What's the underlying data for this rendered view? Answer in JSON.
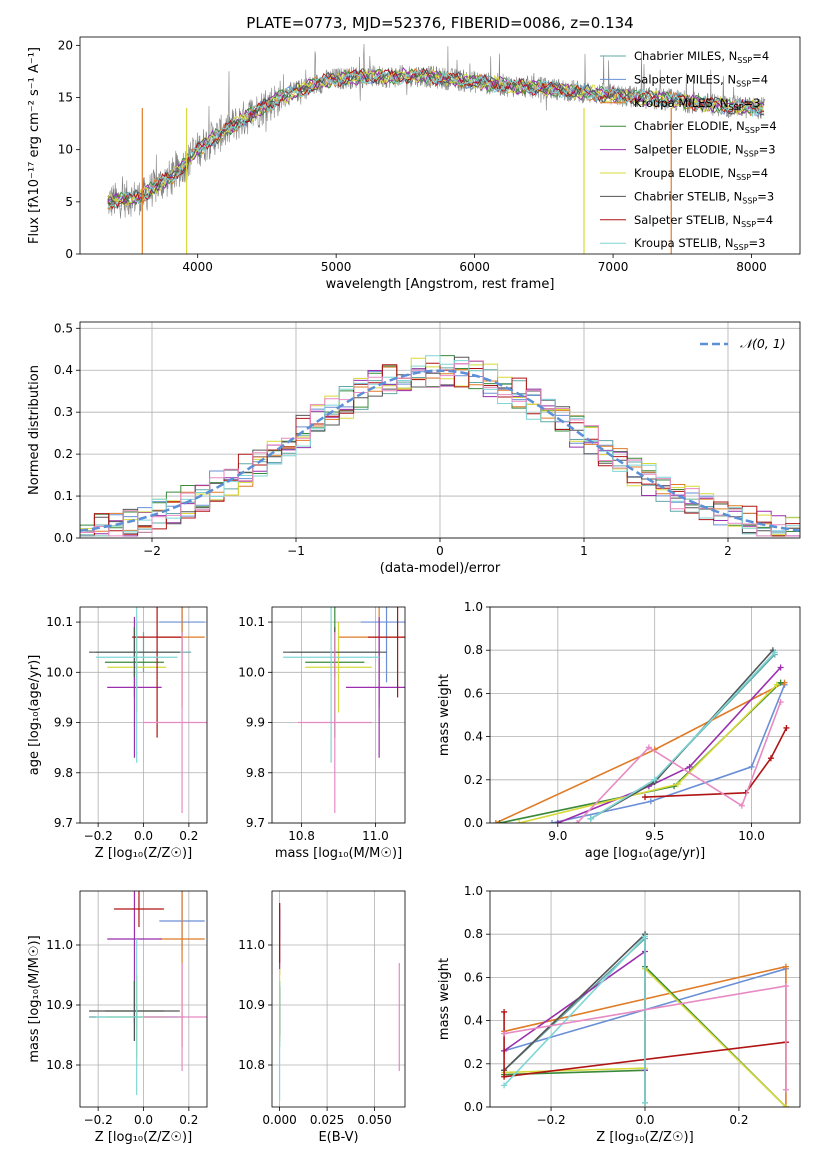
{
  "figure_title": "PLATE=0773, MJD=52376, FIBERID=0086, z=0.134",
  "colors": {
    "Chabrier MILES": "#62a8a8",
    "Salpeter MILES": "#6a8fd6",
    "Kroupa MILES": "#e07b27",
    "Chabrier ELODIE": "#3a8a3a",
    "Salpeter ELODIE": "#9b2fae",
    "Kroupa ELODIE": "#d7d939",
    "Chabrier STELIB": "#555555",
    "Salpeter STELIB": "#b01414",
    "Kroupa STELIB": "#7fd6d6",
    "pink": "#e78ac3",
    "spectrum": "#808080"
  },
  "chart_data": [
    {
      "id": "spectrum",
      "type": "line",
      "title": "PLATE=0773, MJD=52376, FIBERID=0086, z=0.134",
      "xlabel": "wavelength [Angstrom, rest frame]",
      "ylabel": "Flux [fλ10⁻¹⁷ erg cm⁻² s⁻¹ A⁻¹]",
      "xlim": [
        3150,
        8350
      ],
      "ylim": [
        0,
        20.8
      ],
      "xticks": [
        4000,
        5000,
        6000,
        7000,
        8000
      ],
      "yticks": [
        0,
        5,
        10,
        15,
        20
      ],
      "legend_position": "top-right",
      "legend": [
        "Chabrier MILES, N_SSP=4",
        "Salpeter MILES, N_SSP=4",
        "Kroupa MILES, N_SSP=3",
        "Chabrier ELODIE, N_SSP=4",
        "Salpeter ELODIE, N_SSP=3",
        "Kroupa ELODIE, N_SSP=4",
        "Chabrier STELIB, N_SSP=3",
        "Salpeter STELIB, N_SSP=4",
        "Kroupa STELIB, N_SSP=3"
      ],
      "continuum": {
        "x": [
          3350,
          3500,
          3600,
          3700,
          3800,
          3900,
          4000,
          4100,
          4200,
          4300,
          4400,
          4500,
          4600,
          4700,
          4800,
          4900,
          5000,
          5200,
          5400,
          5600,
          5800,
          6000,
          6200,
          6400,
          6600,
          6800,
          7000,
          7200,
          7400,
          7600,
          7800,
          8000,
          8100
        ],
        "y": [
          5.0,
          5.3,
          5.5,
          6.5,
          7.3,
          8.5,
          10.0,
          11.0,
          11.8,
          12.7,
          13.5,
          14.3,
          15.0,
          15.5,
          16.0,
          16.5,
          16.8,
          17.0,
          17.0,
          17.1,
          16.8,
          16.5,
          16.2,
          16.0,
          15.8,
          15.5,
          15.2,
          15.0,
          14.8,
          14.5,
          14.2,
          14.0,
          14.0
        ]
      }
    },
    {
      "id": "residuals",
      "type": "line",
      "xlabel": "(data-model)/error",
      "ylabel": "Normed distribution",
      "xlim": [
        -2.5,
        2.5
      ],
      "ylim": [
        0,
        0.515
      ],
      "xticks": [
        -2,
        -1,
        0,
        1,
        2
      ],
      "yticks": [
        0.0,
        0.1,
        0.2,
        0.3,
        0.4,
        0.5
      ],
      "grid": true,
      "legend_position": "top-right",
      "legend": [
        "𝒩(0, 1)"
      ],
      "gaussian": {
        "mean": 0,
        "sigma": 1
      }
    },
    {
      "id": "z-age",
      "type": "scatter",
      "xlabel": "Z [log₁₀(Z/Z☉)]",
      "ylabel": "age  [log₁₀(age/yr)]",
      "xlim": [
        -0.28,
        0.28
      ],
      "ylim": [
        9.7,
        10.13
      ],
      "xticks": [
        -0.2,
        0.0,
        0.2
      ],
      "yticks": [
        9.7,
        9.8,
        9.9,
        10.0,
        10.1
      ],
      "grid": true,
      "points": [
        {
          "series": "Chabrier MILES",
          "x": 0.0,
          "y": 10.04,
          "xerr": 0.21,
          "yerr": 0.04
        },
        {
          "series": "Salpeter MILES",
          "x": 0.17,
          "y": 10.1,
          "xerr": 0.1,
          "yerr": 0.06
        },
        {
          "series": "Kroupa MILES",
          "x": 0.17,
          "y": 10.07,
          "xerr": 0.1,
          "yerr": 0.14
        },
        {
          "series": "Chabrier ELODIE",
          "x": -0.04,
          "y": 10.02,
          "xerr": 0.13,
          "yerr": 0.07
        },
        {
          "series": "Salpeter ELODIE",
          "x": -0.04,
          "y": 9.97,
          "xerr": 0.12,
          "yerr": 0.14
        },
        {
          "series": "Kroupa ELODIE",
          "x": -0.03,
          "y": 10.01,
          "xerr": 0.13,
          "yerr": 0.09
        },
        {
          "series": "Chabrier STELIB",
          "x": -0.04,
          "y": 10.04,
          "xerr": 0.2,
          "yerr": 0.05
        },
        {
          "series": "Salpeter STELIB",
          "x": 0.06,
          "y": 10.07,
          "xerr": 0.11,
          "yerr": 0.2
        },
        {
          "series": "Kroupa STELIB",
          "x": -0.03,
          "y": 10.03,
          "xerr": 0.18,
          "yerr": 0.21
        },
        {
          "series": "pink",
          "x": 0.17,
          "y": 9.9,
          "xerr": 0.17,
          "yerr": 0.18
        }
      ]
    },
    {
      "id": "mass-age",
      "type": "scatter",
      "xlabel": "mass [log₁₀(M/M☉)]",
      "ylabel": "",
      "xlim": [
        10.72,
        11.08
      ],
      "ylim": [
        9.7,
        10.13
      ],
      "xticks": [
        10.8,
        11.0
      ],
      "yticks": [
        9.7,
        9.8,
        9.9,
        10.0,
        10.1
      ],
      "grid": true,
      "points": [
        {
          "series": "Chabrier MILES",
          "x": 10.89,
          "y": 10.04,
          "xerr": 0.12,
          "yerr": 0.04
        },
        {
          "series": "Salpeter MILES",
          "x": 11.03,
          "y": 10.1,
          "xerr": 0.07,
          "yerr": 0.12
        },
        {
          "series": "Kroupa MILES",
          "x": 11.01,
          "y": 10.07,
          "xerr": 0.11,
          "yerr": 0.14
        },
        {
          "series": "Chabrier ELODIE",
          "x": 10.89,
          "y": 10.02,
          "xerr": 0.08,
          "yerr": 0.15
        },
        {
          "series": "Salpeter ELODIE",
          "x": 11.01,
          "y": 9.97,
          "xerr": 0.09,
          "yerr": 0.14
        },
        {
          "series": "Kroupa ELODIE",
          "x": 10.9,
          "y": 10.01,
          "xerr": 0.09,
          "yerr": 0.09
        },
        {
          "series": "Chabrier STELIB",
          "x": 10.89,
          "y": 10.04,
          "xerr": 0.14,
          "yerr": 0.05
        },
        {
          "series": "Salpeter STELIB",
          "x": 11.06,
          "y": 10.07,
          "xerr": 0.08,
          "yerr": 0.12
        },
        {
          "series": "Kroupa STELIB",
          "x": 10.88,
          "y": 10.03,
          "xerr": 0.13,
          "yerr": 0.21
        },
        {
          "series": "pink",
          "x": 10.89,
          "y": 9.9,
          "xerr": 0.1,
          "yerr": 0.18
        }
      ]
    },
    {
      "id": "age-weight",
      "type": "line",
      "xlabel": "age  [log₁₀(age/yr)]",
      "ylabel": "mass weight",
      "xlim": [
        8.65,
        10.25
      ],
      "ylim": [
        0,
        1.0
      ],
      "xticks": [
        9.0,
        9.5,
        10.0
      ],
      "yticks": [
        0.0,
        0.2,
        0.4,
        0.6,
        0.8,
        1.0
      ],
      "grid": true,
      "series": [
        {
          "series": "Chabrier MILES",
          "x": [
            9.17,
            9.5,
            10.12
          ],
          "y": [
            0.02,
            0.2,
            0.78
          ]
        },
        {
          "series": "Salpeter MILES",
          "x": [
            8.97,
            9.48,
            10.0,
            10.17
          ],
          "y": [
            0.0,
            0.1,
            0.26,
            0.64
          ]
        },
        {
          "series": "Kroupa MILES",
          "x": [
            8.68,
            9.5,
            10.17
          ],
          "y": [
            0.0,
            0.34,
            0.65
          ]
        },
        {
          "series": "Chabrier ELODIE",
          "x": [
            8.7,
            9.6,
            10.15
          ],
          "y": [
            0.0,
            0.17,
            0.65
          ]
        },
        {
          "series": "Salpeter ELODIE",
          "x": [
            9.0,
            9.47,
            9.68,
            10.15
          ],
          "y": [
            0.0,
            0.17,
            0.26,
            0.72
          ]
        },
        {
          "series": "Kroupa ELODIE",
          "x": [
            8.8,
            9.62,
            10.13
          ],
          "y": [
            0.0,
            0.18,
            0.64
          ]
        },
        {
          "series": "Chabrier STELIB",
          "x": [
            9.17,
            9.5,
            10.11
          ],
          "y": [
            0.02,
            0.19,
            0.8
          ]
        },
        {
          "series": "Salpeter STELIB",
          "x": [
            9.45,
            9.97,
            10.1,
            10.18
          ],
          "y": [
            0.12,
            0.14,
            0.3,
            0.44
          ]
        },
        {
          "series": "Kroupa STELIB",
          "x": [
            9.17,
            9.5,
            10.12
          ],
          "y": [
            0.02,
            0.2,
            0.79
          ]
        },
        {
          "series": "pink",
          "x": [
            9.1,
            9.47,
            9.95,
            10.15
          ],
          "y": [
            0.0,
            0.35,
            0.08,
            0.56
          ]
        }
      ]
    },
    {
      "id": "z-mass",
      "type": "scatter",
      "xlabel": "Z [log₁₀(Z/Z☉)]",
      "ylabel": "mass [log₁₀(M/M☉)]",
      "xlim": [
        -0.28,
        0.28
      ],
      "ylim": [
        10.73,
        11.09
      ],
      "xticks": [
        -0.2,
        0.0,
        0.2
      ],
      "yticks": [
        10.8,
        10.9,
        11.0
      ],
      "grid": true,
      "points": [
        {
          "series": "Chabrier MILES",
          "x": -0.03,
          "y": 10.88,
          "xerr": 0.21,
          "yerr": 0.02
        },
        {
          "series": "Salpeter MILES",
          "x": 0.17,
          "y": 11.04,
          "xerr": 0.1,
          "yerr": 0.05
        },
        {
          "series": "Kroupa MILES",
          "x": 0.17,
          "y": 11.01,
          "xerr": 0.1,
          "yerr": 0.18
        },
        {
          "series": "Chabrier ELODIE",
          "x": -0.04,
          "y": 10.89,
          "xerr": 0.13,
          "yerr": 0.05
        },
        {
          "series": "Salpeter ELODIE",
          "x": -0.04,
          "y": 11.01,
          "xerr": 0.12,
          "yerr": 0.14
        },
        {
          "series": "Kroupa ELODIE",
          "x": -0.03,
          "y": 10.88,
          "xerr": 0.13,
          "yerr": 0.07
        },
        {
          "series": "Chabrier STELIB",
          "x": -0.04,
          "y": 10.89,
          "xerr": 0.2,
          "yerr": 0.05
        },
        {
          "series": "Salpeter STELIB",
          "x": -0.02,
          "y": 11.06,
          "xerr": 0.11,
          "yerr": 0.03
        },
        {
          "series": "Kroupa STELIB",
          "x": -0.03,
          "y": 10.88,
          "xerr": 0.18,
          "yerr": 0.13
        },
        {
          "series": "pink",
          "x": 0.17,
          "y": 10.88,
          "xerr": 0.17,
          "yerr": 0.09
        }
      ]
    },
    {
      "id": "ebv-mass",
      "type": "scatter",
      "xlabel": "E(B-V)",
      "ylabel": "",
      "xlim": [
        -0.004,
        0.066
      ],
      "ylim": [
        10.73,
        11.09
      ],
      "xticks": [
        0.0,
        0.025,
        0.05
      ],
      "yticks": [
        10.8,
        10.9,
        11.0
      ],
      "grid": true,
      "points": [
        {
          "series": "Chabrier MILES",
          "x": 0.0,
          "y": 10.88,
          "xerr": 0.0,
          "yerr": 0.05
        },
        {
          "series": "Salpeter MILES",
          "x": 0.0,
          "y": 11.04,
          "xerr": 0.0,
          "yerr": 0.03
        },
        {
          "series": "Kroupa MILES",
          "x": 0.0,
          "y": 11.01,
          "xerr": 0.0,
          "yerr": 0.06
        },
        {
          "series": "Chabrier ELODIE",
          "x": 0.0,
          "y": 10.89,
          "xerr": 0.0,
          "yerr": 0.05
        },
        {
          "series": "Salpeter ELODIE",
          "x": 0.0,
          "y": 11.01,
          "xerr": 0.0,
          "yerr": 0.05
        },
        {
          "series": "Kroupa ELODIE",
          "x": 0.0,
          "y": 10.9,
          "xerr": 0.0,
          "yerr": 0.06
        },
        {
          "series": "Chabrier STELIB",
          "x": 0.0,
          "y": 10.89,
          "xerr": 0.0,
          "yerr": 0.04
        },
        {
          "series": "Salpeter STELIB",
          "x": 0.0,
          "y": 11.02,
          "xerr": 0.0,
          "yerr": 0.05
        },
        {
          "series": "Kroupa STELIB",
          "x": 0.0,
          "y": 10.84,
          "xerr": 0.0,
          "yerr": 0.1
        },
        {
          "series": "pink",
          "x": 0.063,
          "y": 10.88,
          "xerr": 0.0,
          "yerr": 0.09
        }
      ]
    },
    {
      "id": "z-weight",
      "type": "line",
      "xlabel": "Z [log₁₀(Z/Z☉)]",
      "ylabel": "mass weight",
      "xlim": [
        -0.33,
        0.33
      ],
      "ylim": [
        0,
        1.0
      ],
      "xticks": [
        -0.2,
        0.0,
        0.2
      ],
      "yticks": [
        0.0,
        0.2,
        0.4,
        0.6,
        0.8,
        1.0
      ],
      "grid": true,
      "series": [
        {
          "series": "Chabrier MILES",
          "x": [
            -0.3,
            0.0,
            0.0
          ],
          "y": [
            0.17,
            0.78,
            0.02
          ]
        },
        {
          "series": "Salpeter MILES",
          "x": [
            -0.3,
            0.3
          ],
          "y": [
            0.26,
            0.64
          ]
        },
        {
          "series": "Kroupa MILES",
          "x": [
            -0.3,
            0.3,
            0.3
          ],
          "y": [
            0.35,
            0.65,
            0.0
          ]
        },
        {
          "series": "Chabrier ELODIE",
          "x": [
            -0.3,
            0.0,
            0.0,
            0.3
          ],
          "y": [
            0.15,
            0.17,
            0.65,
            0.0
          ]
        },
        {
          "series": "Salpeter ELODIE",
          "x": [
            -0.3,
            0.0,
            0.0
          ],
          "y": [
            0.26,
            0.72,
            0.17
          ]
        },
        {
          "series": "Kroupa ELODIE",
          "x": [
            -0.3,
            0.0,
            0.0,
            0.3
          ],
          "y": [
            0.16,
            0.18,
            0.64,
            0.0
          ]
        },
        {
          "series": "Chabrier STELIB",
          "x": [
            -0.3,
            0.0,
            0.0
          ],
          "y": [
            0.17,
            0.8,
            0.02
          ]
        },
        {
          "series": "Salpeter STELIB",
          "x": [
            -0.3,
            -0.3,
            0.3
          ],
          "y": [
            0.44,
            0.14,
            0.3
          ]
        },
        {
          "series": "Kroupa STELIB",
          "x": [
            -0.3,
            0.0,
            0.0
          ],
          "y": [
            0.1,
            0.79,
            0.02
          ]
        },
        {
          "series": "pink",
          "x": [
            -0.3,
            0.3,
            0.3
          ],
          "y": [
            0.34,
            0.56,
            0.08
          ]
        }
      ]
    }
  ]
}
